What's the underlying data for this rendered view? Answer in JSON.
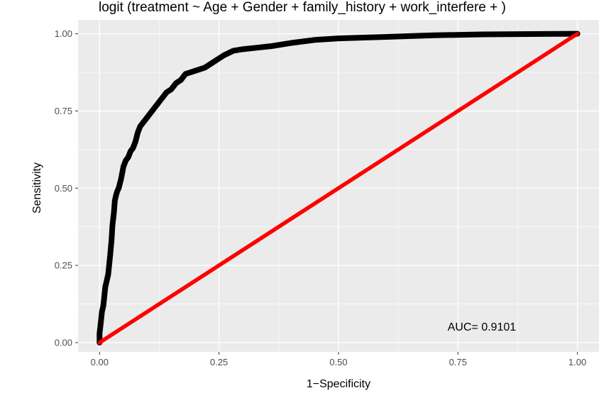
{
  "chart_data": {
    "type": "line",
    "title": "logit (treatment ~ Age + Gender + family_history + work_interfere + )",
    "xlabel": "1−Specificity",
    "ylabel": "Sensitivity",
    "xlim": [
      -0.045,
      1.045
    ],
    "ylim": [
      -0.03,
      1.045
    ],
    "x_ticks": [
      0.0,
      0.25,
      0.5,
      0.75,
      1.0
    ],
    "x_tick_labels": [
      "0.00",
      "0.25",
      "0.50",
      "0.75",
      "1.00"
    ],
    "y_ticks": [
      0.0,
      0.25,
      0.5,
      0.75,
      1.0
    ],
    "y_tick_labels": [
      "0.00",
      "0.25",
      "0.50",
      "0.75",
      "1.00"
    ],
    "grid": true,
    "panel_background": "#ebebeb",
    "grid_color": "#ffffff",
    "series": [
      {
        "color": "#000000",
        "x": [
          0.0,
          0.0,
          0.003,
          0.005,
          0.008,
          0.01,
          0.012,
          0.015,
          0.018,
          0.02,
          0.022,
          0.025,
          0.027,
          0.03,
          0.032,
          0.035,
          0.037,
          0.04,
          0.045,
          0.05,
          0.055,
          0.06,
          0.065,
          0.07,
          0.075,
          0.08,
          0.085,
          0.09,
          0.095,
          0.1,
          0.11,
          0.12,
          0.13,
          0.14,
          0.15,
          0.16,
          0.17,
          0.18,
          0.19,
          0.2,
          0.22,
          0.24,
          0.26,
          0.28,
          0.3,
          0.33,
          0.36,
          0.4,
          0.45,
          0.5,
          0.6,
          0.7,
          0.8,
          0.9,
          1.0
        ],
        "y": [
          0.0,
          0.03,
          0.07,
          0.1,
          0.12,
          0.15,
          0.18,
          0.2,
          0.22,
          0.25,
          0.28,
          0.33,
          0.38,
          0.42,
          0.46,
          0.48,
          0.49,
          0.5,
          0.53,
          0.57,
          0.59,
          0.6,
          0.62,
          0.63,
          0.65,
          0.68,
          0.7,
          0.71,
          0.72,
          0.73,
          0.75,
          0.77,
          0.79,
          0.81,
          0.82,
          0.84,
          0.85,
          0.87,
          0.875,
          0.88,
          0.89,
          0.91,
          0.93,
          0.945,
          0.95,
          0.955,
          0.96,
          0.97,
          0.98,
          0.985,
          0.99,
          0.995,
          0.998,
          0.999,
          1.0
        ]
      },
      {
        "color": "#ff0000",
        "x": [
          0.0,
          1.0
        ],
        "y": [
          0.0,
          1.0
        ]
      }
    ],
    "annotation": {
      "text": "AUC= 0.9101",
      "x": 0.8,
      "y": 0.05
    }
  }
}
